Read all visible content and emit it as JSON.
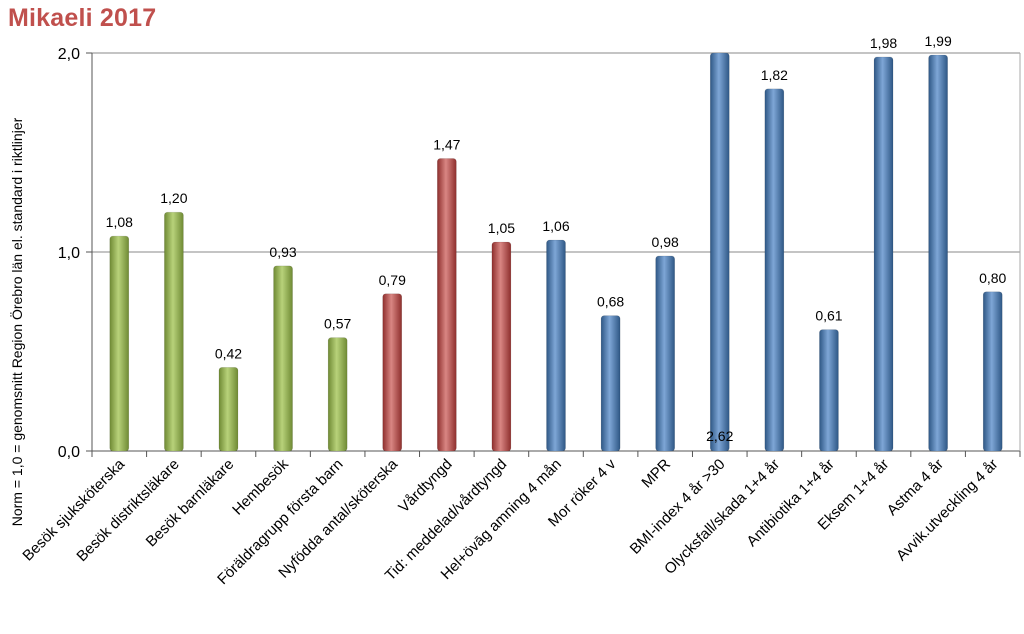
{
  "title": "Mikaeli 2017",
  "chart_data": {
    "type": "bar",
    "title": "Mikaeli 2017",
    "ylabel": "Norm = 1,0 = genomsnitt Region Örebro län el. standard i riktlinjer",
    "xlabel": "",
    "ylim": [
      0,
      2
    ],
    "yticks": [
      "0,0",
      "1,0",
      "2,0"
    ],
    "grid": true,
    "categories": [
      "Besök sjuksköterska",
      "Besök distriktsläkare",
      "Besök barnläkare",
      "Hembesök",
      "Föräldragrupp första barn",
      "Nyfödda antal/sköterska",
      "Vårdtyngd",
      "Tid: meddelad/vårdtyngd",
      "Hel+övāg amning 4 mån",
      "Mor röker 4 v",
      "MPR",
      "BMI-index 4 år >30",
      "Olycksfall/skada 1+4 år",
      "Antibiotika 1+4 år",
      "Eksem 1+4 år",
      "Astma 4 år",
      "Avvik.utveckling 4 år"
    ],
    "values": [
      1.08,
      1.2,
      0.42,
      0.93,
      0.57,
      0.79,
      1.47,
      1.05,
      1.06,
      0.68,
      0.98,
      2.62,
      1.82,
      0.61,
      1.98,
      1.99,
      0.8
    ],
    "value_labels": [
      "1,08",
      "1,20",
      "0,42",
      "0,93",
      "0,57",
      "0,79",
      "1,47",
      "1,05",
      "1,06",
      "0,68",
      "0,98",
      "2,62",
      "1,82",
      "0,61",
      "1,98",
      "1,99",
      "0,80"
    ],
    "groups": [
      "green",
      "green",
      "green",
      "green",
      "green",
      "red",
      "red",
      "red",
      "blue",
      "blue",
      "blue",
      "blue",
      "blue",
      "blue",
      "blue",
      "blue",
      "blue"
    ],
    "colors": {
      "green": "#9bbb59",
      "red": "#c0504d",
      "blue": "#4f81bd",
      "grid": "#888888",
      "title": "#c0504d"
    }
  }
}
